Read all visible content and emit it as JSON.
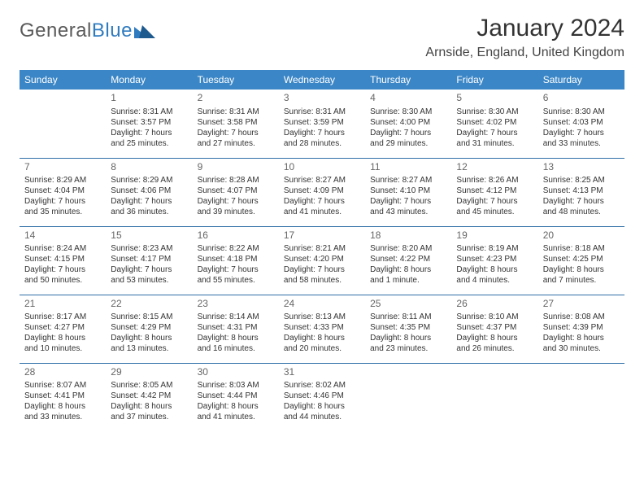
{
  "brand": {
    "name_a": "General",
    "name_b": "Blue"
  },
  "title": "January 2024",
  "location": "Arnside, England, United Kingdom",
  "colors": {
    "header_bg": "#3b86c6",
    "header_text": "#ffffff",
    "row_divider": "#2f6fa8",
    "brand_gray": "#5a5a5a",
    "brand_blue": "#2f7bbf",
    "text": "#333333",
    "daynum": "#666666",
    "page_bg": "#ffffff"
  },
  "typography": {
    "title_fontsize": 30,
    "location_fontsize": 16,
    "weekday_fontsize": 12,
    "daynum_fontsize": 12,
    "cell_fontsize": 10
  },
  "weekdays": [
    "Sunday",
    "Monday",
    "Tuesday",
    "Wednesday",
    "Thursday",
    "Friday",
    "Saturday"
  ],
  "weeks": [
    [
      null,
      {
        "day": "1",
        "sunrise": "Sunrise: 8:31 AM",
        "sunset": "Sunset: 3:57 PM",
        "d1": "Daylight: 7 hours",
        "d2": "and 25 minutes."
      },
      {
        "day": "2",
        "sunrise": "Sunrise: 8:31 AM",
        "sunset": "Sunset: 3:58 PM",
        "d1": "Daylight: 7 hours",
        "d2": "and 27 minutes."
      },
      {
        "day": "3",
        "sunrise": "Sunrise: 8:31 AM",
        "sunset": "Sunset: 3:59 PM",
        "d1": "Daylight: 7 hours",
        "d2": "and 28 minutes."
      },
      {
        "day": "4",
        "sunrise": "Sunrise: 8:30 AM",
        "sunset": "Sunset: 4:00 PM",
        "d1": "Daylight: 7 hours",
        "d2": "and 29 minutes."
      },
      {
        "day": "5",
        "sunrise": "Sunrise: 8:30 AM",
        "sunset": "Sunset: 4:02 PM",
        "d1": "Daylight: 7 hours",
        "d2": "and 31 minutes."
      },
      {
        "day": "6",
        "sunrise": "Sunrise: 8:30 AM",
        "sunset": "Sunset: 4:03 PM",
        "d1": "Daylight: 7 hours",
        "d2": "and 33 minutes."
      }
    ],
    [
      {
        "day": "7",
        "sunrise": "Sunrise: 8:29 AM",
        "sunset": "Sunset: 4:04 PM",
        "d1": "Daylight: 7 hours",
        "d2": "and 35 minutes."
      },
      {
        "day": "8",
        "sunrise": "Sunrise: 8:29 AM",
        "sunset": "Sunset: 4:06 PM",
        "d1": "Daylight: 7 hours",
        "d2": "and 36 minutes."
      },
      {
        "day": "9",
        "sunrise": "Sunrise: 8:28 AM",
        "sunset": "Sunset: 4:07 PM",
        "d1": "Daylight: 7 hours",
        "d2": "and 39 minutes."
      },
      {
        "day": "10",
        "sunrise": "Sunrise: 8:27 AM",
        "sunset": "Sunset: 4:09 PM",
        "d1": "Daylight: 7 hours",
        "d2": "and 41 minutes."
      },
      {
        "day": "11",
        "sunrise": "Sunrise: 8:27 AM",
        "sunset": "Sunset: 4:10 PM",
        "d1": "Daylight: 7 hours",
        "d2": "and 43 minutes."
      },
      {
        "day": "12",
        "sunrise": "Sunrise: 8:26 AM",
        "sunset": "Sunset: 4:12 PM",
        "d1": "Daylight: 7 hours",
        "d2": "and 45 minutes."
      },
      {
        "day": "13",
        "sunrise": "Sunrise: 8:25 AM",
        "sunset": "Sunset: 4:13 PM",
        "d1": "Daylight: 7 hours",
        "d2": "and 48 minutes."
      }
    ],
    [
      {
        "day": "14",
        "sunrise": "Sunrise: 8:24 AM",
        "sunset": "Sunset: 4:15 PM",
        "d1": "Daylight: 7 hours",
        "d2": "and 50 minutes."
      },
      {
        "day": "15",
        "sunrise": "Sunrise: 8:23 AM",
        "sunset": "Sunset: 4:17 PM",
        "d1": "Daylight: 7 hours",
        "d2": "and 53 minutes."
      },
      {
        "day": "16",
        "sunrise": "Sunrise: 8:22 AM",
        "sunset": "Sunset: 4:18 PM",
        "d1": "Daylight: 7 hours",
        "d2": "and 55 minutes."
      },
      {
        "day": "17",
        "sunrise": "Sunrise: 8:21 AM",
        "sunset": "Sunset: 4:20 PM",
        "d1": "Daylight: 7 hours",
        "d2": "and 58 minutes."
      },
      {
        "day": "18",
        "sunrise": "Sunrise: 8:20 AM",
        "sunset": "Sunset: 4:22 PM",
        "d1": "Daylight: 8 hours",
        "d2": "and 1 minute."
      },
      {
        "day": "19",
        "sunrise": "Sunrise: 8:19 AM",
        "sunset": "Sunset: 4:23 PM",
        "d1": "Daylight: 8 hours",
        "d2": "and 4 minutes."
      },
      {
        "day": "20",
        "sunrise": "Sunrise: 8:18 AM",
        "sunset": "Sunset: 4:25 PM",
        "d1": "Daylight: 8 hours",
        "d2": "and 7 minutes."
      }
    ],
    [
      {
        "day": "21",
        "sunrise": "Sunrise: 8:17 AM",
        "sunset": "Sunset: 4:27 PM",
        "d1": "Daylight: 8 hours",
        "d2": "and 10 minutes."
      },
      {
        "day": "22",
        "sunrise": "Sunrise: 8:15 AM",
        "sunset": "Sunset: 4:29 PM",
        "d1": "Daylight: 8 hours",
        "d2": "and 13 minutes."
      },
      {
        "day": "23",
        "sunrise": "Sunrise: 8:14 AM",
        "sunset": "Sunset: 4:31 PM",
        "d1": "Daylight: 8 hours",
        "d2": "and 16 minutes."
      },
      {
        "day": "24",
        "sunrise": "Sunrise: 8:13 AM",
        "sunset": "Sunset: 4:33 PM",
        "d1": "Daylight: 8 hours",
        "d2": "and 20 minutes."
      },
      {
        "day": "25",
        "sunrise": "Sunrise: 8:11 AM",
        "sunset": "Sunset: 4:35 PM",
        "d1": "Daylight: 8 hours",
        "d2": "and 23 minutes."
      },
      {
        "day": "26",
        "sunrise": "Sunrise: 8:10 AM",
        "sunset": "Sunset: 4:37 PM",
        "d1": "Daylight: 8 hours",
        "d2": "and 26 minutes."
      },
      {
        "day": "27",
        "sunrise": "Sunrise: 8:08 AM",
        "sunset": "Sunset: 4:39 PM",
        "d1": "Daylight: 8 hours",
        "d2": "and 30 minutes."
      }
    ],
    [
      {
        "day": "28",
        "sunrise": "Sunrise: 8:07 AM",
        "sunset": "Sunset: 4:41 PM",
        "d1": "Daylight: 8 hours",
        "d2": "and 33 minutes."
      },
      {
        "day": "29",
        "sunrise": "Sunrise: 8:05 AM",
        "sunset": "Sunset: 4:42 PM",
        "d1": "Daylight: 8 hours",
        "d2": "and 37 minutes."
      },
      {
        "day": "30",
        "sunrise": "Sunrise: 8:03 AM",
        "sunset": "Sunset: 4:44 PM",
        "d1": "Daylight: 8 hours",
        "d2": "and 41 minutes."
      },
      {
        "day": "31",
        "sunrise": "Sunrise: 8:02 AM",
        "sunset": "Sunset: 4:46 PM",
        "d1": "Daylight: 8 hours",
        "d2": "and 44 minutes."
      },
      null,
      null,
      null
    ]
  ]
}
